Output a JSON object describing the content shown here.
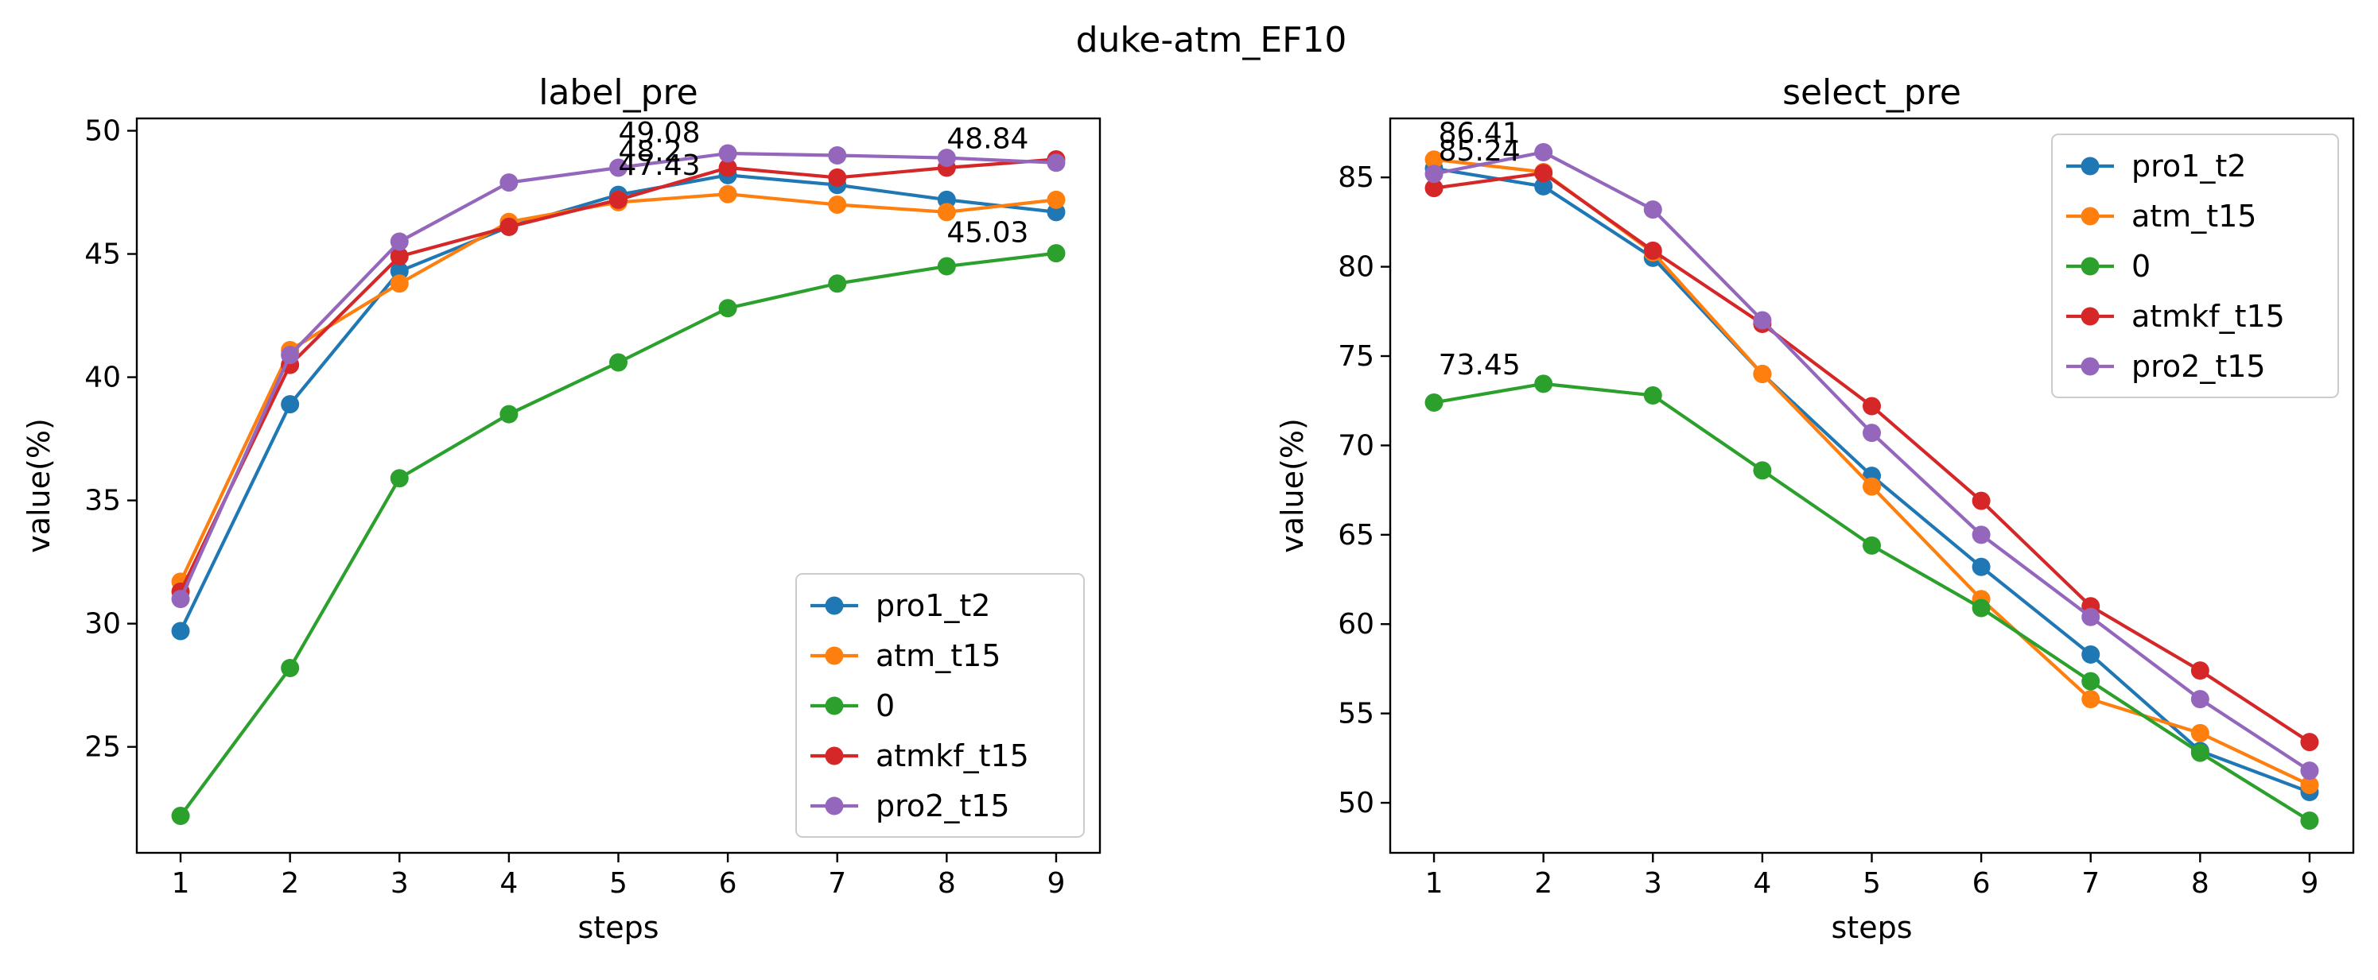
{
  "figure": {
    "suptitle": "duke-atm_EF10"
  },
  "chart_data": [
    {
      "type": "line",
      "title": "label_pre",
      "xlabel": "steps",
      "ylabel": "value(%)",
      "x": [
        1,
        2,
        3,
        4,
        5,
        6,
        7,
        8,
        9
      ],
      "xticks": [
        "1",
        "2",
        "3",
        "4",
        "5",
        "6",
        "7",
        "8",
        "9"
      ],
      "yticks": [
        "25",
        "30",
        "35",
        "40",
        "45",
        "50"
      ],
      "xlim": [
        0.6,
        9.4
      ],
      "ylim": [
        20.7,
        50.5
      ],
      "grid": false,
      "legend_position": "lower-right",
      "series": [
        {
          "name": "pro1_t2",
          "color": "#1f77b4",
          "values": [
            29.7,
            38.9,
            44.3,
            46.1,
            47.4,
            48.2,
            47.8,
            47.2,
            46.7
          ]
        },
        {
          "name": "atm_t15",
          "color": "#ff7f0e",
          "values": [
            31.7,
            41.1,
            43.8,
            46.3,
            47.1,
            47.43,
            47.0,
            46.7,
            47.2
          ]
        },
        {
          "name": "0",
          "color": "#2ca02c",
          "values": [
            22.2,
            28.2,
            35.9,
            38.5,
            40.6,
            42.8,
            43.8,
            44.5,
            45.03
          ]
        },
        {
          "name": "atmkf_t15",
          "color": "#d62728",
          "values": [
            31.3,
            40.5,
            44.9,
            46.1,
            47.2,
            48.5,
            48.1,
            48.5,
            48.84
          ]
        },
        {
          "name": "pro2_t15",
          "color": "#9467bd",
          "values": [
            31.0,
            40.9,
            45.5,
            47.9,
            48.5,
            49.08,
            49.0,
            48.9,
            48.7
          ]
        }
      ],
      "annotations": [
        {
          "text": "49.08",
          "x": 5,
          "y": 49.08,
          "series": "pro2_t15"
        },
        {
          "text": "48.2",
          "x": 5,
          "y": 48.2,
          "series": "pro1_t2"
        },
        {
          "text": "47.43",
          "x": 5,
          "y": 47.43,
          "series": "atm_t15"
        },
        {
          "text": "48.84",
          "x": 8,
          "y": 48.84,
          "series": "atmkf_t15"
        },
        {
          "text": "45.03",
          "x": 8,
          "y": 45.03,
          "series": "0"
        }
      ]
    },
    {
      "type": "line",
      "title": "select_pre",
      "xlabel": "steps",
      "ylabel": "value(%)",
      "x": [
        1,
        2,
        3,
        4,
        5,
        6,
        7,
        8,
        9
      ],
      "xticks": [
        "1",
        "2",
        "3",
        "4",
        "5",
        "6",
        "7",
        "8",
        "9"
      ],
      "yticks": [
        "50",
        "55",
        "60",
        "65",
        "70",
        "75",
        "80",
        "85"
      ],
      "xlim": [
        0.6,
        9.4
      ],
      "ylim": [
        47.2,
        88.3
      ],
      "grid": false,
      "legend_position": "top-right",
      "series": [
        {
          "name": "pro1_t2",
          "color": "#1f77b4",
          "values": [
            85.5,
            84.5,
            80.5,
            74.0,
            68.3,
            63.2,
            58.3,
            52.9,
            50.6
          ]
        },
        {
          "name": "atm_t15",
          "color": "#ff7f0e",
          "values": [
            86.0,
            85.3,
            80.8,
            74.0,
            67.7,
            61.4,
            55.8,
            53.9,
            51.0
          ]
        },
        {
          "name": "0",
          "color": "#2ca02c",
          "values": [
            72.4,
            73.45,
            72.8,
            68.6,
            64.4,
            60.9,
            56.8,
            52.8,
            49.0
          ]
        },
        {
          "name": "atmkf_t15",
          "color": "#d62728",
          "values": [
            84.4,
            85.24,
            80.9,
            76.8,
            72.2,
            66.9,
            61.0,
            57.4,
            53.4
          ]
        },
        {
          "name": "pro2_t15",
          "color": "#9467bd",
          "values": [
            85.2,
            86.41,
            83.2,
            77.0,
            70.7,
            65.0,
            60.4,
            55.8,
            51.8
          ]
        }
      ],
      "annotations": [
        {
          "text": "86.41",
          "x": 2,
          "y": 86.41,
          "series": "pro2_t15"
        },
        {
          "text": "85.24",
          "x": 2,
          "y": 85.24,
          "series": "atmkf_t15"
        },
        {
          "text": "73.45",
          "x": 2,
          "y": 73.45,
          "series": "0"
        }
      ]
    }
  ]
}
